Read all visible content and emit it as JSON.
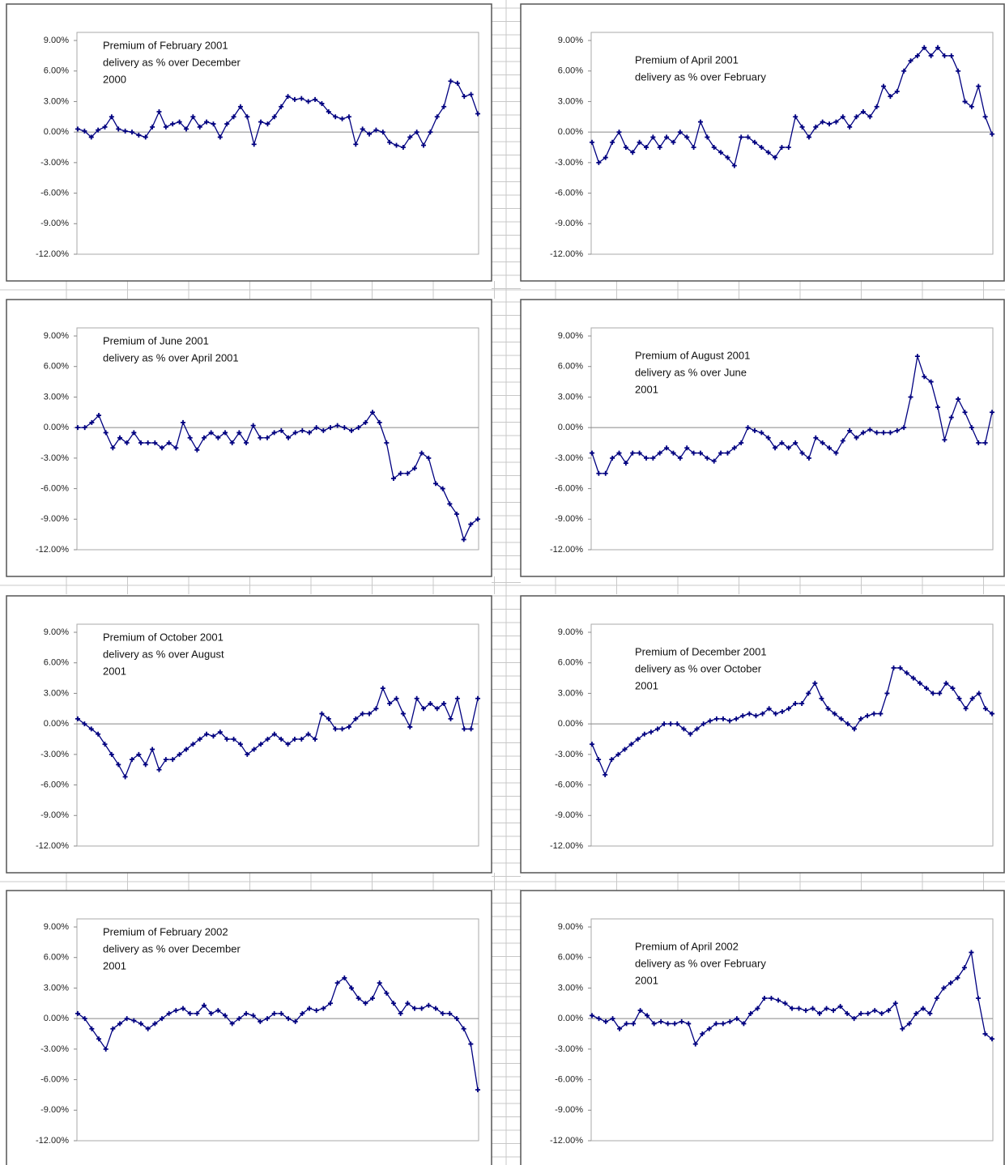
{
  "chart_data": [
    {
      "type": "line",
      "annotation": [
        "Premium of February 2001",
        "delivery as % over December",
        "2000"
      ],
      "ylim": [
        -12,
        9
      ],
      "yticks": [
        {
          "value": 9,
          "label": "9.00%"
        },
        {
          "value": 6,
          "label": "6.00%"
        },
        {
          "value": 3,
          "label": "3.00%"
        },
        {
          "value": 0,
          "label": "0.00%"
        },
        {
          "value": -3,
          "label": "-3.00%"
        },
        {
          "value": -6,
          "label": "-6.00%"
        },
        {
          "value": -9,
          "label": "-9.00%"
        },
        {
          "value": -12,
          "label": "-12.00%"
        }
      ],
      "series": [
        {
          "color": "#000080",
          "values": [
            0.3,
            0.1,
            -0.5,
            0.2,
            0.5,
            1.5,
            0.3,
            0.1,
            0,
            -0.3,
            -0.5,
            0.5,
            2,
            0.5,
            0.8,
            1,
            0.3,
            1.5,
            0.5,
            1,
            0.8,
            -0.5,
            0.8,
            1.5,
            2.5,
            1.5,
            -1.2,
            1,
            0.8,
            1.5,
            2.5,
            3.5,
            3.2,
            3.3,
            3,
            3.2,
            2.8,
            2,
            1.5,
            1.3,
            1.5,
            -1.2,
            0.3,
            -0.2,
            0.2,
            0,
            -1,
            -1.3,
            -1.5,
            -0.5,
            0,
            -1.3,
            0,
            1.5,
            2.5,
            5,
            4.8,
            3.5,
            3.7,
            1.8
          ]
        }
      ]
    },
    {
      "type": "line",
      "annotation": [
        "Premium of April 2001",
        "delivery as % over February"
      ],
      "ylim": [
        -12,
        9
      ],
      "yticks": [
        {
          "value": 9,
          "label": "9.00%"
        },
        {
          "value": 6,
          "label": "6.00%"
        },
        {
          "value": 3,
          "label": "3.00%"
        },
        {
          "value": 0,
          "label": "0.00%"
        },
        {
          "value": -3,
          "label": "-3.00%"
        },
        {
          "value": -6,
          "label": "-6.00%"
        },
        {
          "value": -9,
          "label": "-9.00%"
        },
        {
          "value": -12,
          "label": "-12.00%"
        }
      ],
      "series": [
        {
          "color": "#000080",
          "values": [
            -1,
            -3,
            -2.5,
            -1,
            0,
            -1.5,
            -2,
            -1,
            -1.5,
            -0.5,
            -1.5,
            -0.5,
            -1,
            0,
            -0.5,
            -1.5,
            1,
            -0.5,
            -1.5,
            -2,
            -2.5,
            -3.3,
            -0.5,
            -0.5,
            -1,
            -1.5,
            -2,
            -2.5,
            -1.5,
            -1.5,
            1.5,
            0.5,
            -0.5,
            0.5,
            1,
            0.8,
            1,
            1.5,
            0.5,
            1.5,
            2,
            1.5,
            2.5,
            4.5,
            3.5,
            4,
            6,
            7,
            7.5,
            8.3,
            7.5,
            8.3,
            7.5,
            7.5,
            6,
            3,
            2.5,
            4.5,
            1.5,
            -0.2
          ]
        }
      ]
    },
    {
      "type": "line",
      "annotation": [
        "Premium of June 2001",
        "delivery as % over April 2001"
      ],
      "ylim": [
        -12,
        9
      ],
      "yticks": [
        {
          "value": 9,
          "label": "9.00%"
        },
        {
          "value": 6,
          "label": "6.00%"
        },
        {
          "value": 3,
          "label": "3.00%"
        },
        {
          "value": 0,
          "label": "0.00%"
        },
        {
          "value": -3,
          "label": "-3.00%"
        },
        {
          "value": -6,
          "label": "-6.00%"
        },
        {
          "value": -9,
          "label": "-9.00%"
        },
        {
          "value": -12,
          "label": "-12.00%"
        }
      ],
      "series": [
        {
          "color": "#000080",
          "values": [
            0,
            0,
            0.5,
            1.2,
            -0.5,
            -2,
            -1,
            -1.5,
            -0.5,
            -1.5,
            -1.5,
            -1.5,
            -2,
            -1.5,
            -2,
            0.5,
            -1,
            -2.2,
            -1,
            -0.5,
            -1,
            -0.5,
            -1.5,
            -0.5,
            -1.5,
            0.2,
            -1,
            -1,
            -0.5,
            -0.3,
            -1,
            -0.5,
            -0.3,
            -0.5,
            0,
            -0.3,
            0,
            0.2,
            0,
            -0.3,
            0,
            0.5,
            1.5,
            0.5,
            -1.5,
            -5,
            -4.5,
            -4.5,
            -4,
            -2.5,
            -3,
            -5.5,
            -6,
            -7.5,
            -8.5,
            -11,
            -9.5,
            -9
          ]
        }
      ]
    },
    {
      "type": "line",
      "annotation": [
        "Premium of August 2001",
        "delivery as % over June",
        "2001"
      ],
      "ylim": [
        -12,
        9
      ],
      "yticks": [
        {
          "value": 9,
          "label": "9.00%"
        },
        {
          "value": 6,
          "label": "6.00%"
        },
        {
          "value": 3,
          "label": "3.00%"
        },
        {
          "value": 0,
          "label": "0.00%"
        },
        {
          "value": -3,
          "label": "-3.00%"
        },
        {
          "value": -6,
          "label": "-6.00%"
        },
        {
          "value": -9,
          "label": "-9.00%"
        },
        {
          "value": -12,
          "label": "-12.00%"
        }
      ],
      "series": [
        {
          "color": "#000080",
          "values": [
            -2.5,
            -4.5,
            -4.5,
            -3,
            -2.5,
            -3.5,
            -2.5,
            -2.5,
            -3,
            -3,
            -2.5,
            -2,
            -2.5,
            -3,
            -2,
            -2.5,
            -2.5,
            -3,
            -3.3,
            -2.5,
            -2.5,
            -2,
            -1.5,
            0,
            -0.3,
            -0.5,
            -1,
            -2,
            -1.5,
            -2,
            -1.5,
            -2.5,
            -3,
            -1,
            -1.5,
            -2,
            -2.5,
            -1.3,
            -0.3,
            -1,
            -0.5,
            -0.2,
            -0.5,
            -0.5,
            -0.5,
            -0.3,
            0,
            3,
            7,
            5,
            4.5,
            2,
            -1.2,
            1,
            2.8,
            1.5,
            0,
            -1.5,
            -1.5,
            1.5
          ]
        }
      ]
    },
    {
      "type": "line",
      "annotation": [
        "Premium of October 2001",
        "delivery as % over August",
        "2001"
      ],
      "ylim": [
        -12,
        9
      ],
      "yticks": [
        {
          "value": 9,
          "label": "9.00%"
        },
        {
          "value": 6,
          "label": "6.00%"
        },
        {
          "value": 3,
          "label": "3.00%"
        },
        {
          "value": 0,
          "label": "0.00%"
        },
        {
          "value": -3,
          "label": "-3.00%"
        },
        {
          "value": -6,
          "label": "-6.00%"
        },
        {
          "value": -9,
          "label": "-9.00%"
        },
        {
          "value": -12,
          "label": "-12.00%"
        }
      ],
      "series": [
        {
          "color": "#000080",
          "values": [
            0.5,
            0,
            -0.5,
            -1,
            -2,
            -3,
            -4,
            -5.2,
            -3.5,
            -3,
            -4,
            -2.5,
            -4.5,
            -3.5,
            -3.5,
            -3,
            -2.5,
            -2,
            -1.5,
            -1,
            -1.2,
            -0.8,
            -1.5,
            -1.5,
            -2,
            -3,
            -2.5,
            -2,
            -1.5,
            -1,
            -1.5,
            -2,
            -1.5,
            -1.5,
            -1,
            -1.5,
            1,
            0.5,
            -0.5,
            -0.5,
            -0.3,
            0.5,
            1,
            1,
            1.5,
            3.5,
            2,
            2.5,
            1,
            -0.3,
            2.5,
            1.5,
            2,
            1.5,
            2,
            0.5,
            2.5,
            -0.5,
            -0.5,
            2.5
          ]
        }
      ]
    },
    {
      "type": "line",
      "annotation": [
        "Premium of December 2001",
        "delivery as % over October",
        "2001"
      ],
      "ylim": [
        -12,
        9
      ],
      "yticks": [
        {
          "value": 9,
          "label": "9.00%"
        },
        {
          "value": 6,
          "label": "6.00%"
        },
        {
          "value": 3,
          "label": "3.00%"
        },
        {
          "value": 0,
          "label": "0.00%"
        },
        {
          "value": -3,
          "label": "-3.00%"
        },
        {
          "value": -6,
          "label": "-6.00%"
        },
        {
          "value": -9,
          "label": "-9.00%"
        },
        {
          "value": -12,
          "label": "-12.00%"
        }
      ],
      "series": [
        {
          "color": "#000080",
          "values": [
            -2,
            -3.5,
            -5,
            -3.5,
            -3,
            -2.5,
            -2,
            -1.5,
            -1,
            -0.8,
            -0.5,
            0,
            0,
            0,
            -0.5,
            -1,
            -0.5,
            0,
            0.3,
            0.5,
            0.5,
            0.3,
            0.5,
            0.8,
            1,
            0.8,
            1,
            1.5,
            1,
            1.2,
            1.5,
            2,
            2,
            3,
            4,
            2.5,
            1.5,
            1,
            0.5,
            0,
            -0.5,
            0.5,
            0.8,
            1,
            1,
            3,
            5.5,
            5.5,
            5,
            4.5,
            4,
            3.5,
            3,
            3,
            4,
            3.5,
            2.5,
            1.5,
            2.5,
            3,
            1.5,
            1
          ]
        }
      ]
    },
    {
      "type": "line",
      "annotation": [
        "Premium of February 2002",
        "delivery as % over December",
        "2001"
      ],
      "ylim": [
        -12,
        9
      ],
      "yticks": [
        {
          "value": 9,
          "label": "9.00%"
        },
        {
          "value": 6,
          "label": "6.00%"
        },
        {
          "value": 3,
          "label": "3.00%"
        },
        {
          "value": 0,
          "label": "0.00%"
        },
        {
          "value": -3,
          "label": "-3.00%"
        },
        {
          "value": -6,
          "label": "-6.00%"
        },
        {
          "value": -9,
          "label": "-9.00%"
        },
        {
          "value": -12,
          "label": "-12.00%"
        }
      ],
      "series": [
        {
          "color": "#000080",
          "values": [
            0.5,
            0,
            -1,
            -2,
            -3,
            -1,
            -0.5,
            0,
            -0.2,
            -0.5,
            -1,
            -0.5,
            0,
            0.5,
            0.8,
            1,
            0.5,
            0.5,
            1.3,
            0.5,
            0.8,
            0.3,
            -0.5,
            0,
            0.5,
            0.3,
            -0.3,
            0,
            0.5,
            0.5,
            0,
            -0.3,
            0.5,
            1,
            0.8,
            1,
            1.5,
            3.5,
            4,
            3,
            2,
            1.5,
            2,
            3.5,
            2.5,
            1.5,
            0.5,
            1.5,
            1,
            1,
            1.3,
            1,
            0.5,
            0.5,
            0,
            -1,
            -2.5,
            -7
          ]
        }
      ]
    },
    {
      "type": "line",
      "annotation": [
        "Premium of April 2002",
        "delivery as % over February",
        "2001"
      ],
      "ylim": [
        -12,
        9
      ],
      "yticks": [
        {
          "value": 9,
          "label": "9.00%"
        },
        {
          "value": 6,
          "label": "6.00%"
        },
        {
          "value": 3,
          "label": "3.00%"
        },
        {
          "value": 0,
          "label": "0.00%"
        },
        {
          "value": -3,
          "label": "-3.00%"
        },
        {
          "value": -6,
          "label": "-6.00%"
        },
        {
          "value": -9,
          "label": "-9.00%"
        },
        {
          "value": -12,
          "label": "-12.00%"
        }
      ],
      "series": [
        {
          "color": "#000080",
          "values": [
            0.3,
            0,
            -0.3,
            0,
            -1,
            -0.5,
            -0.5,
            0.8,
            0.3,
            -0.5,
            -0.3,
            -0.5,
            -0.5,
            -0.3,
            -0.5,
            -2.5,
            -1.5,
            -1,
            -0.5,
            -0.5,
            -0.3,
            0,
            -0.5,
            0.5,
            1,
            2,
            2,
            1.8,
            1.5,
            1,
            1,
            0.8,
            1,
            0.5,
            1,
            0.8,
            1.2,
            0.5,
            0,
            0.5,
            0.5,
            0.8,
            0.5,
            0.8,
            1.5,
            -1,
            -0.5,
            0.5,
            1,
            0.5,
            2,
            3,
            3.5,
            4,
            5,
            6.5,
            2,
            -1.5,
            -2
          ]
        }
      ]
    }
  ]
}
